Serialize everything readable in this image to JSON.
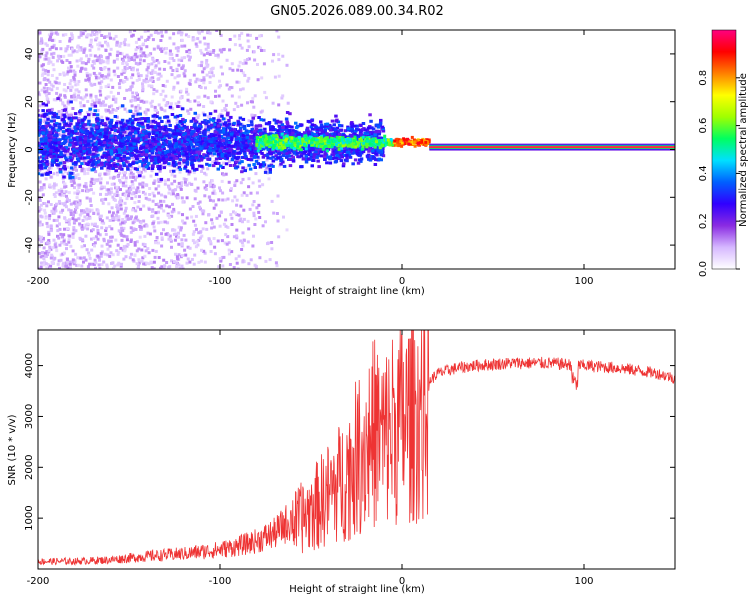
{
  "title": "GN05.2026.089.00.34.R02",
  "chart_data": [
    {
      "type": "heatmap",
      "xlabel": "Height of straight line (km)",
      "ylabel": "Frequency (Hz)",
      "xlim": [
        -200,
        150
      ],
      "ylim": [
        -50,
        50
      ],
      "xticks": [
        -200,
        -100,
        0,
        100
      ],
      "yticks": [
        -40,
        -20,
        0,
        20,
        40
      ],
      "colorbar": {
        "label": "Normalized spectral amplitude",
        "range": [
          0,
          1
        ],
        "ticks": [
          0.0,
          0.2,
          0.4,
          0.6,
          0.8
        ],
        "colors": [
          "#ffffff",
          "#d6b8ff",
          "#8a2be2",
          "#3000ff",
          "#0060ff",
          "#00e0ff",
          "#00ff60",
          "#a0ff00",
          "#ffff00",
          "#ff8000",
          "#ff0000",
          "#ff0080"
        ]
      },
      "features": [
        {
          "name": "noise cloud",
          "x_range": [
            -200,
            -60
          ],
          "freq_range": [
            -50,
            50
          ],
          "amplitude": 0.05
        },
        {
          "name": "signal band",
          "x_range": [
            -200,
            -10
          ],
          "freq_center": 3,
          "freq_halfwidth": 8,
          "amplitude": 0.2
        },
        {
          "name": "converging tone",
          "x_range": [
            -80,
            15
          ],
          "freq_center": 3,
          "freq_halfwidth": 3,
          "amplitude": 0.45
        },
        {
          "name": "carrier line",
          "x_range": [
            15,
            150
          ],
          "freq_center": 1,
          "amplitude": 1.0
        }
      ]
    },
    {
      "type": "line",
      "xlabel": "Height of straight line (km)",
      "ylabel": "SNR (10 * v/v)",
      "xlim": [
        -200,
        150
      ],
      "ylim": [
        0,
        4700
      ],
      "xticks": [
        -200,
        -100,
        0,
        100
      ],
      "yticks": [
        1000,
        2000,
        3000,
        4000
      ],
      "color": "#ee3333",
      "series": [
        {
          "name": "SNR",
          "x": [
            -200,
            -180,
            -160,
            -140,
            -120,
            -100,
            -90,
            -80,
            -70,
            -60,
            -50,
            -40,
            -35,
            -30,
            -25,
            -20,
            -15,
            -10,
            -5,
            0,
            5,
            10,
            15,
            20,
            30,
            40,
            60,
            80,
            100,
            120,
            140,
            150
          ],
          "y": [
            150,
            150,
            180,
            250,
            300,
            380,
            450,
            550,
            700,
            1000,
            1300,
            1700,
            1900,
            2150,
            2500,
            2800,
            3100,
            2900,
            3200,
            3300,
            3400,
            3500,
            3700,
            3850,
            3950,
            4000,
            4050,
            4050,
            4000,
            3950,
            3850,
            3750
          ]
        }
      ]
    }
  ]
}
